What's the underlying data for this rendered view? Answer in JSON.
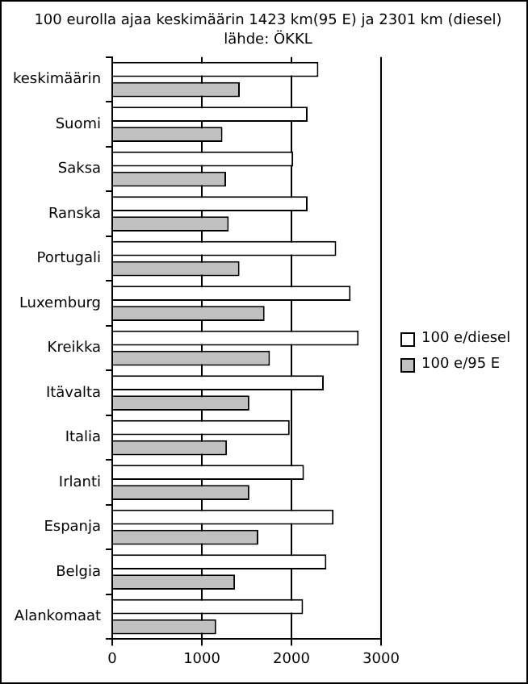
{
  "chart_data": {
    "type": "bar",
    "orientation": "horizontal",
    "title": "100 eurolla ajaa keskimäärin 1423 km(95 E) ja 2301 km (diesel) lähde: ÖKKL",
    "categories": [
      "keskimäärin",
      "Suomi",
      "Saksa",
      "Ranska",
      "Portugali",
      "Luxemburg",
      "Kreikka",
      "Itävalta",
      "Italia",
      "Irlanti",
      "Espanja",
      "Belgia",
      "Alankomaat"
    ],
    "series": [
      {
        "name": "100 e/diesel",
        "color": "#ffffff",
        "values": [
          2301,
          2180,
          2020,
          2180,
          2500,
          2660,
          2750,
          2360,
          1980,
          2140,
          2470,
          2390,
          2130
        ]
      },
      {
        "name": "100 e/95 E",
        "color": "#c0c0c0",
        "values": [
          1423,
          1230,
          1270,
          1300,
          1420,
          1700,
          1760,
          1530,
          1280,
          1530,
          1630,
          1370,
          1160
        ]
      }
    ],
    "xlim": [
      0,
      3000
    ],
    "xticks": [
      0,
      1000,
      2000,
      3000
    ],
    "grid": "x",
    "legend": "right"
  }
}
